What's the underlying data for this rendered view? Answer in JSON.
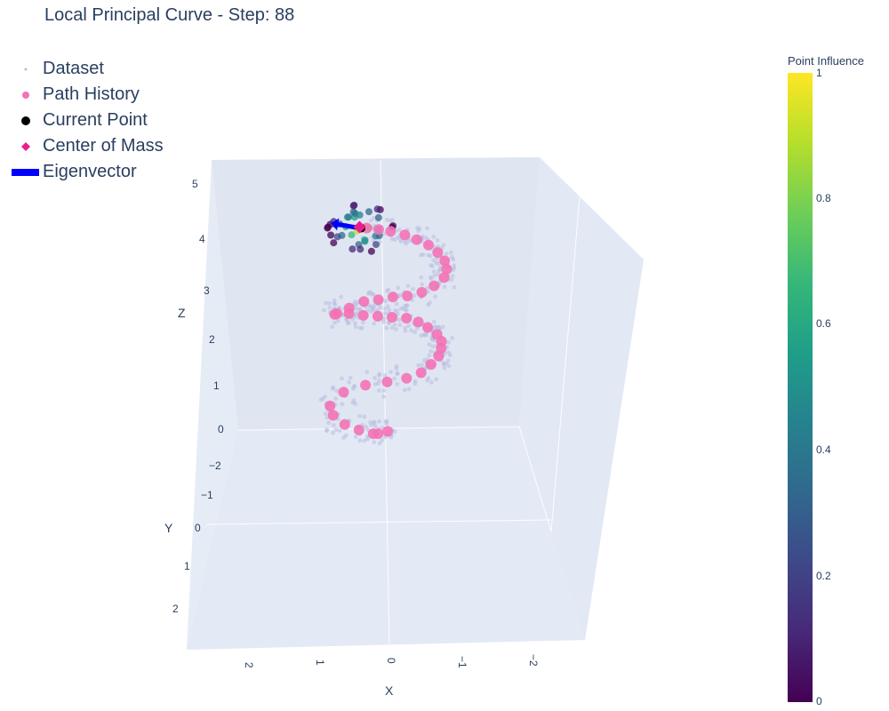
{
  "title": "Local Principal Curve - Step: 88",
  "legend": [
    {
      "label": "Dataset",
      "symbol": "small-dot",
      "color": "#9a9ac8"
    },
    {
      "label": "Path History",
      "symbol": "dot",
      "color": "#f472b6"
    },
    {
      "label": "Current Point",
      "symbol": "dot",
      "color": "#000000"
    },
    {
      "label": "Center of Mass",
      "symbol": "diamond",
      "color": "#e91e8c"
    },
    {
      "label": "Eigenvector",
      "symbol": "bar",
      "color": "#0000ff"
    }
  ],
  "colorbar": {
    "title": "Point Influence",
    "colorscale": "Viridis",
    "range": [
      0,
      1
    ],
    "ticks": [
      "0",
      "0.2",
      "0.4",
      "0.6",
      "0.8",
      "1"
    ]
  },
  "chart_data": {
    "type": "scatter3d",
    "scene": {
      "xaxis": {
        "title": "X",
        "ticks": [
          "2",
          "1",
          "0",
          "−1",
          "−2"
        ]
      },
      "yaxis": {
        "title": "Y",
        "ticks": [
          "−2",
          "−1",
          "0",
          "1",
          "2"
        ]
      },
      "zaxis": {
        "title": "Z",
        "ticks": [
          "0",
          "1",
          "2",
          "3",
          "4",
          "5"
        ]
      },
      "background": "#e5ecf6"
    },
    "path_history": {
      "name": "Path History",
      "color": "#f472b6",
      "points": [
        [
          0.2,
          0,
          0
        ],
        [
          0.0,
          0,
          0.05
        ],
        [
          0.3,
          0,
          0.0
        ],
        [
          0.6,
          0,
          0.08
        ],
        [
          0.9,
          0,
          0.2
        ],
        [
          1.15,
          0,
          0.4
        ],
        [
          1.22,
          0,
          0.6
        ],
        [
          0.95,
          0,
          0.9
        ],
        [
          0.5,
          0,
          1.05
        ],
        [
          0.05,
          0,
          1.12
        ],
        [
          -0.35,
          0,
          1.2
        ],
        [
          -0.65,
          0,
          1.32
        ],
        [
          -0.85,
          0,
          1.5
        ],
        [
          -1.0,
          0,
          1.68
        ],
        [
          -1.05,
          0,
          1.85
        ],
        [
          -1.05,
          0,
          2.0
        ],
        [
          -0.95,
          0,
          2.15
        ],
        [
          -0.75,
          0,
          2.3
        ],
        [
          -0.55,
          0,
          2.42
        ],
        [
          -0.3,
          0,
          2.5
        ],
        [
          0.0,
          0,
          2.52
        ],
        [
          0.3,
          0,
          2.54
        ],
        [
          0.6,
          0,
          2.56
        ],
        [
          0.9,
          0,
          2.6
        ],
        [
          1.15,
          0,
          2.6
        ],
        [
          1.2,
          0,
          2.58
        ],
        [
          0.9,
          0,
          2.72
        ],
        [
          0.6,
          0,
          2.86
        ],
        [
          0.3,
          0,
          2.9
        ],
        [
          0.0,
          0,
          2.96
        ],
        [
          -0.3,
          0,
          2.98
        ],
        [
          -0.6,
          0,
          3.06
        ],
        [
          -0.85,
          0,
          3.2
        ],
        [
          -1.05,
          0,
          3.38
        ],
        [
          -1.1,
          0,
          3.56
        ],
        [
          -1.05,
          0,
          3.74
        ],
        [
          -0.9,
          0,
          3.92
        ],
        [
          -0.7,
          0,
          4.08
        ],
        [
          -0.45,
          0,
          4.2
        ],
        [
          -0.2,
          0,
          4.3
        ],
        [
          0.1,
          0,
          4.38
        ],
        [
          0.35,
          0,
          4.42
        ],
        [
          0.6,
          0,
          4.45
        ]
      ]
    },
    "current_point": {
      "name": "Current Point",
      "x": 0.72,
      "y": 0.0,
      "z": 4.45
    },
    "center_of_mass": {
      "name": "Center of Mass",
      "x": 0.75,
      "y": 0.0,
      "z": 4.47
    },
    "eigenvector": {
      "name": "Eigenvector",
      "x0": 0.75,
      "z0": 4.45,
      "x1": 1.2,
      "z1": 4.53
    }
  }
}
